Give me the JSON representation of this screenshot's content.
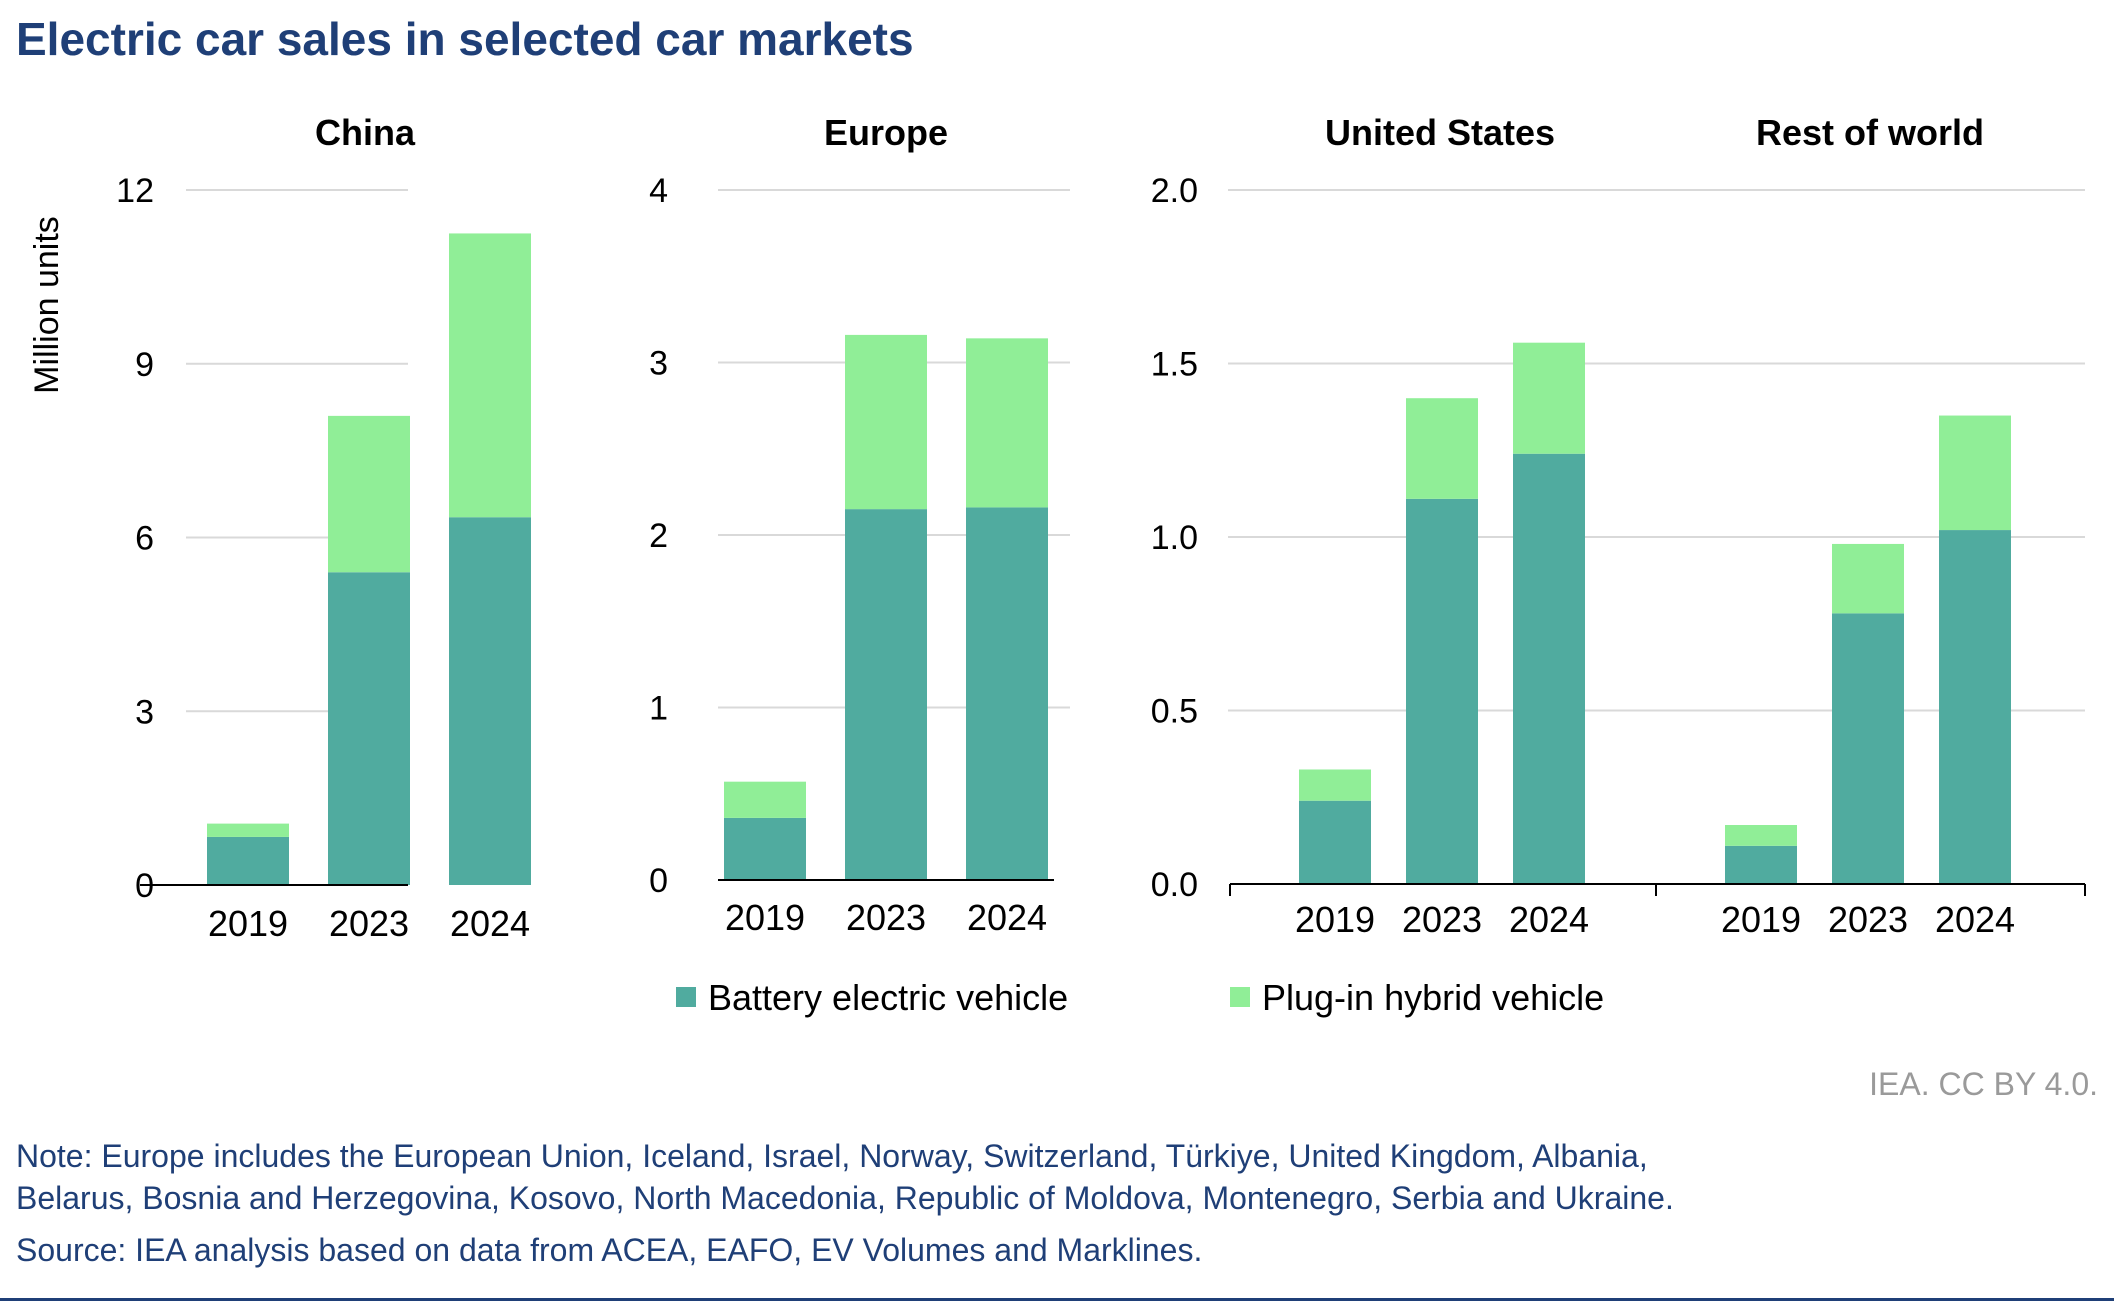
{
  "title": "Electric car sales in selected car markets",
  "ylabel": "Million units",
  "legend": [
    {
      "label": "Battery electric vehicle",
      "color": "#50ab9f"
    },
    {
      "label": "Plug-in hybrid vehicle",
      "color": "#90ee97"
    }
  ],
  "credit": "IEA. CC BY 4.0.",
  "note_line1": "Note: Europe includes the European Union, Iceland, Israel, Norway, Switzerland, Türkiye, United Kingdom, Albania,",
  "note_line2": "Belarus, Bosnia and Herzegovina, Kosovo, North Macedonia, Republic of Moldova, Montenegro, Serbia and Ukraine.",
  "source": "Source: IEA analysis based on data from ACEA, EAFO, EV Volumes and Marklines.",
  "colors": {
    "bev": "#50ab9f",
    "phev": "#90ee97",
    "grid": "#d9d9d9",
    "title": "#1f3f77"
  },
  "chart_data": [
    {
      "type": "bar",
      "stacked": true,
      "title": "China",
      "categories": [
        "2019",
        "2023",
        "2024"
      ],
      "ylim": [
        0,
        12
      ],
      "yticks": [
        "0",
        "3",
        "6",
        "9",
        "12"
      ],
      "series": [
        {
          "name": "Battery electric vehicle",
          "values": [
            0.83,
            5.4,
            6.35
          ]
        },
        {
          "name": "Plug-in hybrid vehicle",
          "values": [
            0.23,
            2.7,
            4.9
          ]
        }
      ]
    },
    {
      "type": "bar",
      "stacked": true,
      "title": "Europe",
      "categories": [
        "2019",
        "2023",
        "2024"
      ],
      "ylim": [
        0,
        4
      ],
      "yticks": [
        "0",
        "1",
        "2",
        "3",
        "4"
      ],
      "series": [
        {
          "name": "Battery electric vehicle",
          "values": [
            0.36,
            2.15,
            2.16
          ]
        },
        {
          "name": "Plug-in hybrid vehicle",
          "values": [
            0.21,
            1.01,
            0.98
          ]
        }
      ]
    },
    {
      "type": "bar",
      "stacked": true,
      "title": "United States",
      "categories": [
        "2019",
        "2023",
        "2024"
      ],
      "ylim": [
        0,
        2
      ],
      "yticks": [
        "0.0",
        "0.5",
        "1.0",
        "1.5",
        "2.0"
      ],
      "series": [
        {
          "name": "Battery electric vehicle",
          "values": [
            0.24,
            1.11,
            1.24
          ]
        },
        {
          "name": "Plug-in hybrid vehicle",
          "values": [
            0.09,
            0.29,
            0.32
          ]
        }
      ]
    },
    {
      "type": "bar",
      "stacked": true,
      "title": "Rest of world",
      "categories": [
        "2019",
        "2023",
        "2024"
      ],
      "ylim": [
        0,
        2
      ],
      "yticks": [
        "0.0",
        "0.5",
        "1.0",
        "1.5",
        "2.0"
      ],
      "series": [
        {
          "name": "Battery electric vehicle",
          "values": [
            0.11,
            0.78,
            1.02
          ]
        },
        {
          "name": "Plug-in hybrid vehicle",
          "values": [
            0.06,
            0.2,
            0.33
          ]
        }
      ]
    }
  ]
}
